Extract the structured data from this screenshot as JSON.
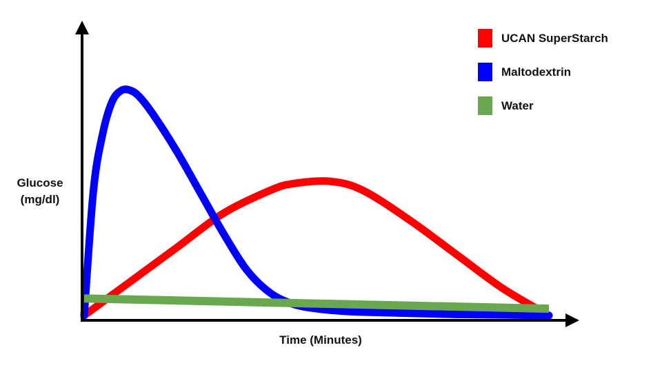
{
  "chart_data": {
    "type": "line",
    "xlabel": "Time (Minutes)",
    "ylabel_line1": "Glucose",
    "ylabel_line2": "(mg/dl)",
    "xlim": [
      0,
      100
    ],
    "ylim": [
      0,
      100
    ],
    "grid": false,
    "legend_position": "top-right",
    "series": [
      {
        "name": "UCAN SuperStarch",
        "color": "#ff0000",
        "x": [
          0,
          10,
          20,
          30,
          40,
          45,
          53,
          60,
          70,
          80,
          90,
          100
        ],
        "y": [
          0,
          15,
          30,
          45,
          55,
          58,
          59,
          55,
          42,
          27,
          12,
          0
        ]
      },
      {
        "name": "Maltodextrin",
        "color": "#0000ff",
        "x": [
          0,
          2,
          4,
          6,
          8,
          10,
          12,
          15,
          20,
          25,
          30,
          35,
          40,
          45,
          50,
          55,
          60,
          70,
          80,
          90,
          100
        ],
        "y": [
          0,
          55,
          80,
          94,
          99,
          99,
          96,
          88,
          72,
          54,
          36,
          20,
          10,
          5,
          3,
          2,
          1.5,
          1,
          0.5,
          0.3,
          0
        ]
      },
      {
        "name": "Water",
        "color": "#6aa84f",
        "x": [
          0,
          100
        ],
        "y": [
          7.5,
          3
        ]
      }
    ]
  }
}
